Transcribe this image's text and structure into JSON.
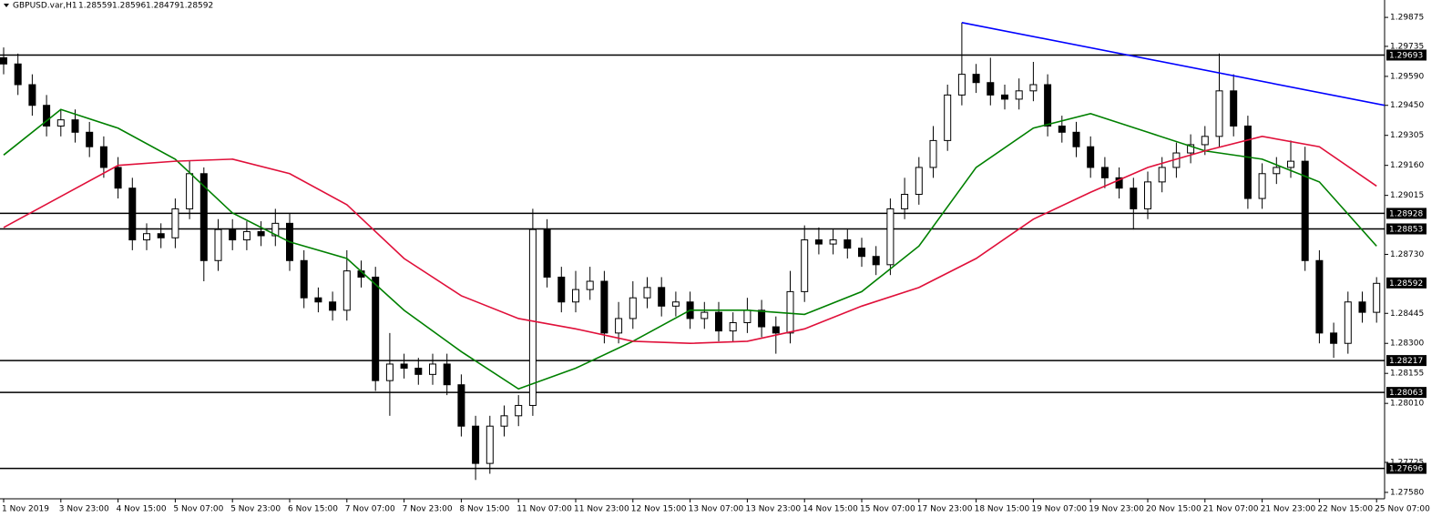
{
  "chart_data": {
    "type": "candlestick",
    "symbol": "GBPUSD.var,H1",
    "quote": [
      1.28559,
      1.28596,
      1.28479,
      1.28592
    ],
    "ylim": [
      1.27549,
      1.29959
    ],
    "yticks": [
      1.29875,
      1.29735,
      {
        "value": 1.2959,
        "label": "1.29590"
      },
      {
        "value": 1.2945,
        "label": "1.29450"
      },
      1.29305,
      {
        "value": 1.2916,
        "label": "1.29160"
      },
      1.29015,
      {
        "value": 1.2873,
        "label": "1.28730"
      },
      1.28445,
      {
        "value": 1.283,
        "label": "1.28300"
      },
      1.28155,
      {
        "value": 1.2801,
        "label": "1.28010"
      },
      1.27725,
      {
        "value": 1.2758,
        "label": "1.27580"
      }
    ],
    "x_labels": [
      "1 Nov 2019",
      "3 Nov 23:00",
      "4 Nov 15:00",
      "5 Nov 07:00",
      "5 Nov 23:00",
      "6 Nov 15:00",
      "7 Nov 07:00",
      "7 Nov 23:00",
      "8 Nov 15:00",
      "11 Nov 07:00",
      "11 Nov 23:00",
      "12 Nov 15:00",
      "13 Nov 07:00",
      "13 Nov 23:00",
      "14 Nov 15:00",
      "15 Nov 07:00",
      "17 Nov 23:00",
      "18 Nov 15:00",
      "19 Nov 07:00",
      "19 Nov 23:00",
      "20 Nov 15:00",
      "21 Nov 07:00",
      "21 Nov 23:00",
      "22 Nov 15:00",
      "25 Nov 07:00"
    ],
    "bull_color": "#ffffff",
    "bear_color": "#000000",
    "open": [
      1.2968,
      1.2965,
      1.2955,
      1.2945,
      1.2935,
      1.2938,
      1.2932,
      1.2925,
      1.2915,
      1.2905,
      1.288,
      1.2883,
      1.2881,
      1.2895,
      1.2912,
      1.287,
      1.2885,
      1.288,
      1.2884,
      1.2882,
      1.2888,
      1.287,
      1.2852,
      1.285,
      1.2846,
      1.2865,
      1.2862,
      1.2812,
      1.282,
      1.2818,
      1.2815,
      1.282,
      1.281,
      1.279,
      1.2772,
      1.279,
      1.2795,
      1.28,
      1.2885,
      1.2862,
      1.285,
      1.2856,
      1.286,
      1.2835,
      1.2842,
      1.2852,
      1.2857,
      1.2848,
      1.285,
      1.2842,
      1.2845,
      1.2836,
      1.284,
      1.2846,
      1.2838,
      1.2835,
      1.2855,
      1.288,
      1.2878,
      1.288,
      1.2876,
      1.2872,
      1.2868,
      1.2895,
      1.2902,
      1.2915,
      1.2928,
      1.295,
      1.296,
      1.2956,
      1.295,
      1.2948,
      1.2952,
      1.2955,
      1.2935,
      1.2932,
      1.2925,
      1.2915,
      1.291,
      1.2905,
      1.2895,
      1.2908,
      1.2915,
      1.2922,
      1.2926,
      1.293,
      1.2952,
      1.2935,
      1.29,
      1.2912,
      1.2915,
      1.2918,
      1.287,
      1.2835,
      1.283,
      1.285,
      1.2845
    ],
    "high": [
      1.2973,
      1.297,
      1.296,
      1.295,
      1.2943,
      1.2943,
      1.2937,
      1.293,
      1.292,
      1.291,
      1.2888,
      1.2888,
      1.29,
      1.2918,
      1.2915,
      1.289,
      1.289,
      1.2889,
      1.2889,
      1.2895,
      1.2893,
      1.2875,
      1.2857,
      1.2855,
      1.2875,
      1.287,
      1.2867,
      1.2835,
      1.2825,
      1.2823,
      1.2825,
      1.2825,
      1.2815,
      1.2795,
      1.2795,
      1.28,
      1.2805,
      1.2895,
      1.289,
      1.2867,
      1.2865,
      1.2867,
      1.2865,
      1.285,
      1.286,
      1.2862,
      1.2862,
      1.2855,
      1.2855,
      1.285,
      1.285,
      1.2845,
      1.2852,
      1.2851,
      1.2843,
      1.2865,
      1.2887,
      1.2886,
      1.2885,
      1.2885,
      1.2881,
      1.2877,
      1.29,
      1.291,
      1.292,
      1.2935,
      1.2955,
      1.2985,
      1.2965,
      1.2968,
      1.2955,
      1.2958,
      1.2966,
      1.296,
      1.294,
      1.2937,
      1.293,
      1.292,
      1.2915,
      1.291,
      1.2913,
      1.292,
      1.2927,
      1.2931,
      1.2935,
      1.297,
      1.296,
      1.294,
      1.2917,
      1.292,
      1.2928,
      1.2925,
      1.2875,
      1.284,
      1.2855,
      1.2855,
      1.2862
    ],
    "low": [
      1.296,
      1.295,
      1.294,
      1.293,
      1.293,
      1.2927,
      1.292,
      1.291,
      1.29,
      1.2875,
      1.2875,
      1.2876,
      1.2876,
      1.289,
      1.286,
      1.2865,
      1.2875,
      1.2875,
      1.2877,
      1.2877,
      1.2865,
      1.2847,
      1.2845,
      1.2841,
      1.2841,
      1.2857,
      1.2807,
      1.2795,
      1.2813,
      1.281,
      1.281,
      1.2805,
      1.2785,
      1.2764,
      1.2767,
      1.2785,
      1.279,
      1.2795,
      1.2857,
      1.2845,
      1.2845,
      1.2851,
      1.283,
      1.283,
      1.2837,
      1.2847,
      1.2843,
      1.2843,
      1.2837,
      1.2837,
      1.2831,
      1.2831,
      1.2835,
      1.2833,
      1.2825,
      1.283,
      1.285,
      1.2873,
      1.2873,
      1.2871,
      1.2867,
      1.2863,
      1.2863,
      1.289,
      1.2897,
      1.291,
      1.2923,
      1.2945,
      1.2951,
      1.2945,
      1.2943,
      1.2943,
      1.2947,
      1.293,
      1.2927,
      1.292,
      1.291,
      1.2905,
      1.29,
      1.2885,
      1.289,
      1.2903,
      1.291,
      1.2917,
      1.2921,
      1.2925,
      1.293,
      1.2895,
      1.2895,
      1.2907,
      1.291,
      1.2865,
      1.283,
      1.2823,
      1.2825,
      1.284,
      1.284
    ],
    "close": [
      1.2965,
      1.2955,
      1.2945,
      1.2935,
      1.2938,
      1.2932,
      1.2925,
      1.2915,
      1.2905,
      1.288,
      1.2883,
      1.2881,
      1.2895,
      1.2912,
      1.287,
      1.2885,
      1.288,
      1.2884,
      1.2882,
      1.2888,
      1.287,
      1.2852,
      1.285,
      1.2846,
      1.2865,
      1.2862,
      1.2812,
      1.282,
      1.2818,
      1.2815,
      1.282,
      1.281,
      1.279,
      1.2772,
      1.279,
      1.2795,
      1.28,
      1.2885,
      1.2862,
      1.285,
      1.2856,
      1.286,
      1.2835,
      1.2842,
      1.2852,
      1.2857,
      1.2848,
      1.285,
      1.2842,
      1.2845,
      1.2836,
      1.284,
      1.2846,
      1.2838,
      1.2835,
      1.2855,
      1.288,
      1.2878,
      1.288,
      1.2876,
      1.2872,
      1.2868,
      1.2895,
      1.2902,
      1.2915,
      1.2928,
      1.295,
      1.296,
      1.2956,
      1.295,
      1.2948,
      1.2952,
      1.2955,
      1.2935,
      1.2932,
      1.2925,
      1.2915,
      1.291,
      1.2905,
      1.2895,
      1.2908,
      1.2915,
      1.2922,
      1.2926,
      1.293,
      1.2952,
      1.2935,
      1.29,
      1.2912,
      1.2915,
      1.2918,
      1.287,
      1.2835,
      1.283,
      1.285,
      1.2845,
      1.2859
    ],
    "series": [
      {
        "color": "#008000",
        "values": [
          1.2921,
          1.2943,
          1.2934,
          1.2919,
          1.2893,
          1.2879,
          1.2871,
          1.2846,
          1.2826,
          1.2808,
          1.2818,
          1.2831,
          1.2846,
          1.2846,
          1.2844,
          1.2855,
          1.2877,
          1.2915,
          1.2934,
          1.2941,
          1.2932,
          1.2923,
          1.2919,
          1.2908,
          1.2877
        ]
      },
      {
        "color": "#e0103a",
        "values": [
          1.2886,
          1.2901,
          1.2916,
          1.2918,
          1.2919,
          1.2912,
          1.2897,
          1.2871,
          1.2853,
          1.2842,
          1.2837,
          1.2831,
          1.283,
          1.2831,
          1.2837,
          1.2848,
          1.2857,
          1.2871,
          1.289,
          1.2903,
          1.2915,
          1.2923,
          1.293,
          1.2925,
          1.2906
        ]
      }
    ],
    "trendline": {
      "color": "#0000ff",
      "values": [
        1.2985,
        1.2945
      ]
    },
    "levels": [
      1.29693,
      1.28928,
      1.28853,
      1.28217,
      1.28063,
      1.27696
    ]
  }
}
